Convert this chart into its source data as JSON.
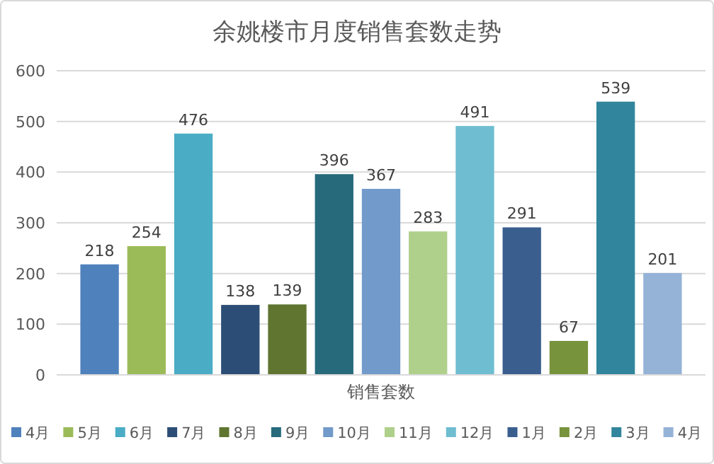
{
  "chart_data": {
    "type": "bar",
    "title": "余姚楼市月度销售套数走势",
    "categories": [
      "销售套数"
    ],
    "series": [
      {
        "name": "4月",
        "color": "#4f81bd",
        "values": [
          218
        ]
      },
      {
        "name": "5月",
        "color": "#9bbb59",
        "values": [
          254
        ]
      },
      {
        "name": "6月",
        "color": "#4bacc6",
        "values": [
          476
        ]
      },
      {
        "name": "7月",
        "color": "#2c4d75",
        "values": [
          138
        ]
      },
      {
        "name": "8月",
        "color": "#5f7530",
        "values": [
          139
        ]
      },
      {
        "name": "9月",
        "color": "#276a7c",
        "values": [
          396
        ]
      },
      {
        "name": "10月",
        "color": "#729aca",
        "values": [
          367
        ]
      },
      {
        "name": "11月",
        "color": "#afd08b",
        "values": [
          283
        ]
      },
      {
        "name": "12月",
        "color": "#6fbdd1",
        "values": [
          491
        ]
      },
      {
        "name": "1月",
        "color": "#3a5f8f",
        "values": [
          291
        ]
      },
      {
        "name": "2月",
        "color": "#77933c",
        "values": [
          67
        ]
      },
      {
        "name": "3月",
        "color": "#31859c",
        "values": [
          539
        ]
      },
      {
        "name": "4月",
        "color": "#95b3d7",
        "values": [
          201
        ]
      }
    ],
    "ylim": [
      0,
      600
    ],
    "yticks": [
      0,
      100,
      200,
      300,
      400,
      500,
      600
    ],
    "grid": "y",
    "legend": "bottom",
    "data_labels": true
  }
}
